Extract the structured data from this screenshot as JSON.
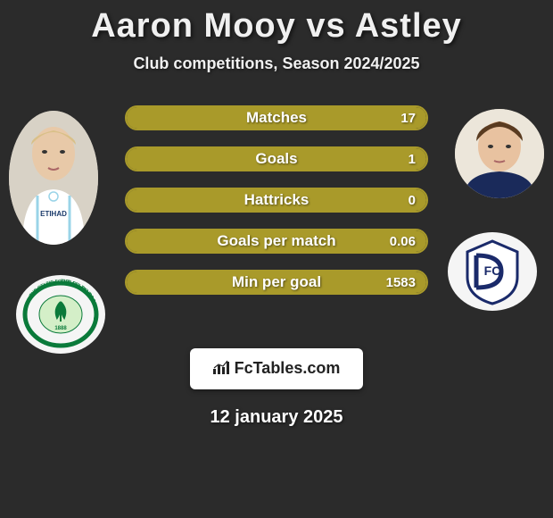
{
  "header": {
    "title": "Aaron Mooy vs Astley",
    "subtitle": "Club competitions, Season 2024/2025"
  },
  "colors": {
    "background": "#2b2b2b",
    "accent": "#a99a2a",
    "text": "#ffffff",
    "logo_bg": "#ffffff",
    "logo_text": "#222222"
  },
  "players": {
    "left": {
      "name": "Aaron Mooy",
      "club_logo": "celtic-crest",
      "avatar_colors": {
        "skin": "#e8c9a8",
        "shirt": "#ffffff",
        "accent": "#9ad4e8"
      }
    },
    "right": {
      "name": "Astley",
      "club_logo": "dundee-crest",
      "avatar_colors": {
        "skin": "#e8c2a0",
        "hair": "#5a3b20",
        "shirt": "#1a2a5a"
      }
    }
  },
  "stats": {
    "bar_style": {
      "border_color": "#a99a2a",
      "fill_color": "#a99a2a",
      "height": 28,
      "radius": 14,
      "font_size": 17
    },
    "rows": [
      {
        "label": "Matches",
        "left_value": "",
        "left_pct": 0,
        "right_value": "17",
        "right_pct": 100
      },
      {
        "label": "Goals",
        "left_value": "",
        "left_pct": 0,
        "right_value": "1",
        "right_pct": 100
      },
      {
        "label": "Hattricks",
        "left_value": "",
        "left_pct": 0,
        "right_value": "0",
        "right_pct": 100
      },
      {
        "label": "Goals per match",
        "left_value": "",
        "left_pct": 0,
        "right_value": "0.06",
        "right_pct": 100
      },
      {
        "label": "Min per goal",
        "left_value": "",
        "left_pct": 0,
        "right_value": "1583",
        "right_pct": 100
      }
    ]
  },
  "footer": {
    "logo_text": "FcTables.com",
    "date": "12 january 2025"
  }
}
